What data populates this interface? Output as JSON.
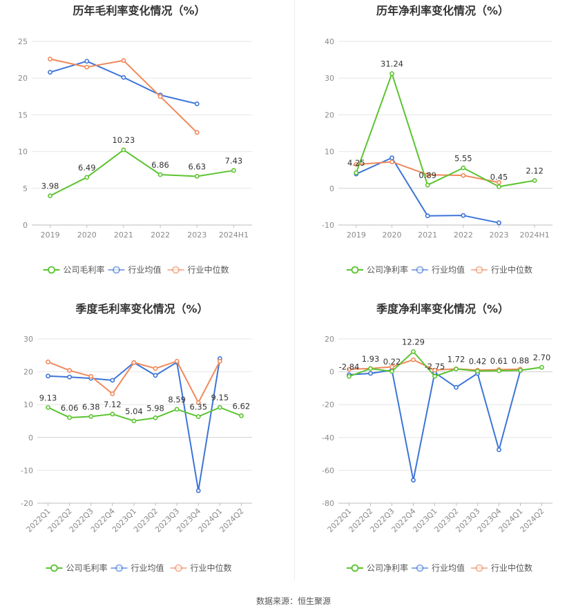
{
  "colors": {
    "company": "#5ac42f",
    "industry_avg": "#3b74d8",
    "industry_median": "#f08859",
    "grid": "#e6e6e6",
    "axis_text": "#8a8a8a",
    "label_text": "#333333"
  },
  "footer": {
    "source": "数据来源：恒生聚源"
  },
  "chart_data": [
    {
      "type": "line",
      "title": "历年毛利率变化情况（%）",
      "categories": [
        "2019",
        "2020",
        "2021",
        "2022",
        "2023",
        "2024H1"
      ],
      "ylim": [
        0,
        25
      ],
      "yticks": [
        0,
        5,
        10,
        15,
        20,
        25
      ],
      "grid": true,
      "legend_position": "bottom",
      "series": [
        {
          "name": "公司毛利率",
          "role": "company",
          "labeled": true,
          "values": [
            3.98,
            6.49,
            10.23,
            6.86,
            6.63,
            7.43
          ],
          "labels": [
            "3.98",
            "6.49",
            "10.23",
            "6.86",
            "6.63",
            "7.43"
          ]
        },
        {
          "name": "行业均值",
          "role": "industry_avg",
          "values": [
            20.8,
            22.3,
            20.1,
            17.7,
            16.5,
            null
          ]
        },
        {
          "name": "行业中位数",
          "role": "industry_median",
          "values": [
            22.6,
            21.5,
            22.4,
            17.5,
            12.6,
            null
          ]
        }
      ]
    },
    {
      "type": "line",
      "title": "历年净利率变化情况（%）",
      "categories": [
        "2019",
        "2020",
        "2021",
        "2022",
        "2023",
        "2024H1"
      ],
      "ylim": [
        -10,
        40
      ],
      "yticks": [
        -10,
        0,
        10,
        20,
        30,
        40
      ],
      "grid": true,
      "legend_position": "bottom",
      "series": [
        {
          "name": "公司净利率",
          "role": "company",
          "labeled": true,
          "values": [
            4.25,
            31.24,
            0.89,
            5.55,
            0.45,
            2.12
          ],
          "labels": [
            "4.25",
            "31.24",
            "0.89",
            "5.55",
            "0.45",
            "2.12"
          ]
        },
        {
          "name": "行业均值",
          "role": "industry_avg",
          "values": [
            3.9,
            8.3,
            -7.5,
            -7.4,
            -9.4,
            null
          ]
        },
        {
          "name": "行业中位数",
          "role": "industry_median",
          "values": [
            6.5,
            7.2,
            3.7,
            3.5,
            1.6,
            null
          ]
        }
      ]
    },
    {
      "type": "line",
      "title": "季度毛利率变化情况（%）",
      "categories": [
        "2022Q1",
        "2022Q2",
        "2022Q3",
        "2022Q4",
        "2023Q1",
        "2023Q2",
        "2023Q3",
        "2023Q4",
        "2024Q1",
        "2024Q2"
      ],
      "ylim": [
        -20,
        30
      ],
      "yticks": [
        -20,
        -10,
        0,
        10,
        20,
        30
      ],
      "grid": true,
      "legend_position": "bottom",
      "series": [
        {
          "name": "公司毛利率",
          "role": "company",
          "labeled": true,
          "values": [
            9.13,
            6.06,
            6.38,
            7.12,
            5.04,
            5.98,
            8.59,
            6.35,
            9.15,
            6.62
          ],
          "labels": [
            "9.13",
            "6.06",
            "6.38",
            "7.12",
            "5.04",
            "5.98",
            "8.59",
            "6.35",
            "9.15",
            "6.62"
          ]
        },
        {
          "name": "行业均值",
          "role": "industry_avg",
          "values": [
            18.7,
            18.4,
            18.0,
            17.4,
            22.8,
            18.9,
            22.9,
            -16.2,
            24.0,
            null
          ]
        },
        {
          "name": "行业中位数",
          "role": "industry_median",
          "values": [
            23.0,
            20.4,
            18.6,
            13.3,
            22.8,
            21.0,
            23.2,
            10.6,
            23.2,
            null
          ]
        }
      ]
    },
    {
      "type": "line",
      "title": "季度净利率变化情况（%）",
      "categories": [
        "2022Q1",
        "2022Q2",
        "2022Q3",
        "2022Q4",
        "2023Q1",
        "2023Q2",
        "2023Q3",
        "2023Q4",
        "2024Q1",
        "2024Q2"
      ],
      "ylim": [
        -80,
        20
      ],
      "yticks": [
        -80,
        -60,
        -40,
        -20,
        0,
        20
      ],
      "grid": true,
      "legend_position": "bottom",
      "series": [
        {
          "name": "公司净利率",
          "role": "company",
          "labeled": true,
          "values": [
            -2.84,
            1.93,
            0.22,
            12.29,
            -2.75,
            1.72,
            0.42,
            0.61,
            0.88,
            2.7
          ],
          "labels": [
            "-2.84",
            "1.93",
            "0.22",
            "12.29",
            "-2.75",
            "1.72",
            "0.42",
            "0.61",
            "0.88",
            "2.70"
          ]
        },
        {
          "name": "行业均值",
          "role": "industry_avg",
          "values": [
            -1.8,
            -1.0,
            1.0,
            -66.0,
            -0.5,
            -9.5,
            -1.0,
            -47.5,
            0.8,
            null
          ]
        },
        {
          "name": "行业中位数",
          "role": "industry_median",
          "values": [
            1.5,
            2.0,
            3.0,
            7.3,
            1.0,
            1.8,
            1.0,
            1.3,
            1.6,
            null
          ]
        }
      ]
    }
  ]
}
